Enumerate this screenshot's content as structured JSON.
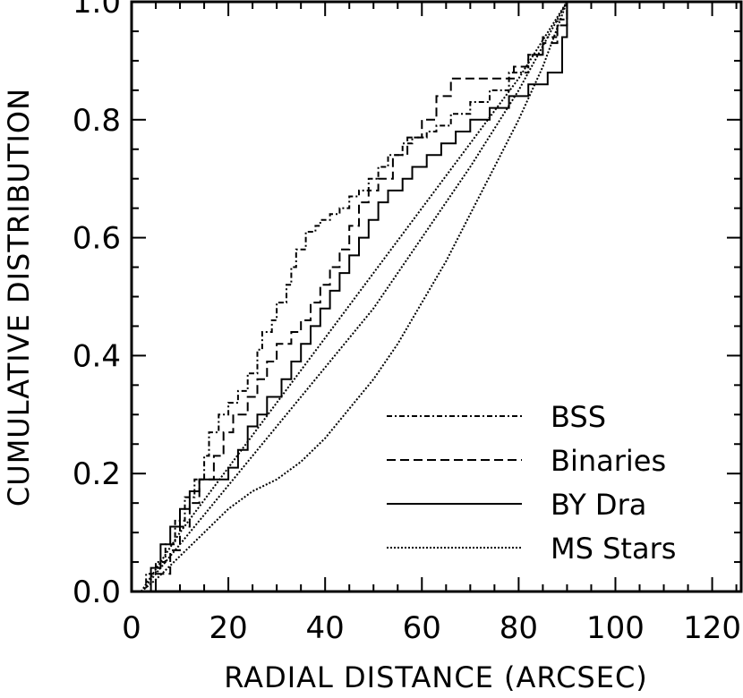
{
  "chart_data": {
    "type": "line",
    "title": "",
    "xlabel": "RADIAL DISTANCE (ARCSEC)",
    "ylabel": "CUMULATIVE DISTRIBUTION",
    "xlim": [
      0,
      126
    ],
    "ylim": [
      0,
      1.0
    ],
    "xticks": [
      0,
      20,
      40,
      60,
      80,
      100,
      120
    ],
    "yticks": [
      0.0,
      0.2,
      0.4,
      0.6,
      0.8,
      1.0
    ],
    "xtick_labels": [
      "0",
      "20",
      "40",
      "60",
      "80",
      "100",
      "120"
    ],
    "ytick_labels": [
      "0.0",
      "0.2",
      "0.4",
      "0.6",
      "0.8",
      "1.0"
    ],
    "grid": false,
    "legend": "lower-right",
    "series": [
      {
        "name": "BSS",
        "style": "dash-dot",
        "step": true,
        "x": [
          2,
          3,
          5,
          7,
          9,
          11,
          13,
          15,
          16,
          18,
          20,
          22,
          24,
          26,
          27,
          29,
          30,
          32,
          33,
          34,
          36,
          38,
          39,
          41,
          43,
          45,
          47,
          49,
          51,
          53,
          56,
          58,
          61,
          63,
          66,
          70,
          74,
          78,
          82,
          85,
          88,
          90
        ],
        "y": [
          0.0,
          0.03,
          0.05,
          0.08,
          0.12,
          0.16,
          0.19,
          0.23,
          0.27,
          0.3,
          0.32,
          0.34,
          0.37,
          0.41,
          0.44,
          0.46,
          0.49,
          0.52,
          0.55,
          0.58,
          0.61,
          0.62,
          0.63,
          0.64,
          0.65,
          0.67,
          0.68,
          0.7,
          0.72,
          0.74,
          0.76,
          0.77,
          0.78,
          0.79,
          0.81,
          0.83,
          0.85,
          0.88,
          0.91,
          0.94,
          0.97,
          1.0
        ]
      },
      {
        "name": "Binaries",
        "style": "dashed",
        "step": true,
        "x": [
          3,
          5,
          8,
          10,
          12,
          14,
          17,
          19,
          21,
          24,
          26,
          28,
          30,
          33,
          35,
          37,
          39,
          41,
          43,
          45,
          47,
          49,
          51,
          54,
          57,
          60,
          63,
          66,
          70,
          75,
          79,
          82,
          85,
          88,
          90
        ],
        "y": [
          0.0,
          0.03,
          0.07,
          0.11,
          0.15,
          0.19,
          0.23,
          0.27,
          0.3,
          0.33,
          0.36,
          0.39,
          0.42,
          0.44,
          0.46,
          0.49,
          0.52,
          0.55,
          0.58,
          0.62,
          0.66,
          0.68,
          0.7,
          0.74,
          0.77,
          0.8,
          0.84,
          0.87,
          0.87,
          0.87,
          0.89,
          0.91,
          0.93,
          0.96,
          1.0
        ]
      },
      {
        "name": "BY Dra",
        "style": "solid",
        "step": true,
        "x": [
          2,
          4,
          6,
          8,
          10,
          12,
          14,
          17,
          20,
          22,
          24,
          26,
          28,
          31,
          33,
          35,
          37,
          39,
          41,
          43,
          45,
          47,
          49,
          51,
          53,
          56,
          58,
          61,
          64,
          67,
          70,
          74,
          78,
          82,
          86,
          89,
          90
        ],
        "y": [
          0.0,
          0.04,
          0.08,
          0.11,
          0.14,
          0.17,
          0.19,
          0.19,
          0.21,
          0.24,
          0.28,
          0.3,
          0.33,
          0.36,
          0.39,
          0.42,
          0.45,
          0.48,
          0.51,
          0.54,
          0.57,
          0.6,
          0.63,
          0.66,
          0.68,
          0.7,
          0.72,
          0.74,
          0.76,
          0.78,
          0.8,
          0.82,
          0.84,
          0.86,
          0.88,
          0.94,
          1.0
        ]
      },
      {
        "name": "MS Stars",
        "style": "dotted",
        "step": false,
        "x": [
          2,
          5,
          10,
          15,
          20,
          25,
          30,
          35,
          40,
          45,
          50,
          55,
          60,
          65,
          70,
          75,
          80,
          85,
          90
        ],
        "y": [
          0.0,
          0.02,
          0.06,
          0.1,
          0.14,
          0.17,
          0.19,
          0.22,
          0.26,
          0.31,
          0.36,
          0.42,
          0.49,
          0.56,
          0.64,
          0.72,
          0.8,
          0.89,
          1.0
        ]
      },
      {
        "name": "",
        "style": "dotted",
        "step": false,
        "x": [
          2,
          10,
          20,
          30,
          40,
          50,
          60,
          70,
          80,
          90
        ],
        "y": [
          0.0,
          0.08,
          0.18,
          0.28,
          0.38,
          0.48,
          0.6,
          0.72,
          0.85,
          1.0
        ]
      },
      {
        "name": "",
        "style": "dotted",
        "step": false,
        "x": [
          2,
          10,
          20,
          30,
          40,
          50,
          60,
          70,
          80,
          90
        ],
        "y": [
          0.0,
          0.1,
          0.21,
          0.32,
          0.43,
          0.54,
          0.65,
          0.76,
          0.87,
          1.0
        ]
      }
    ]
  }
}
